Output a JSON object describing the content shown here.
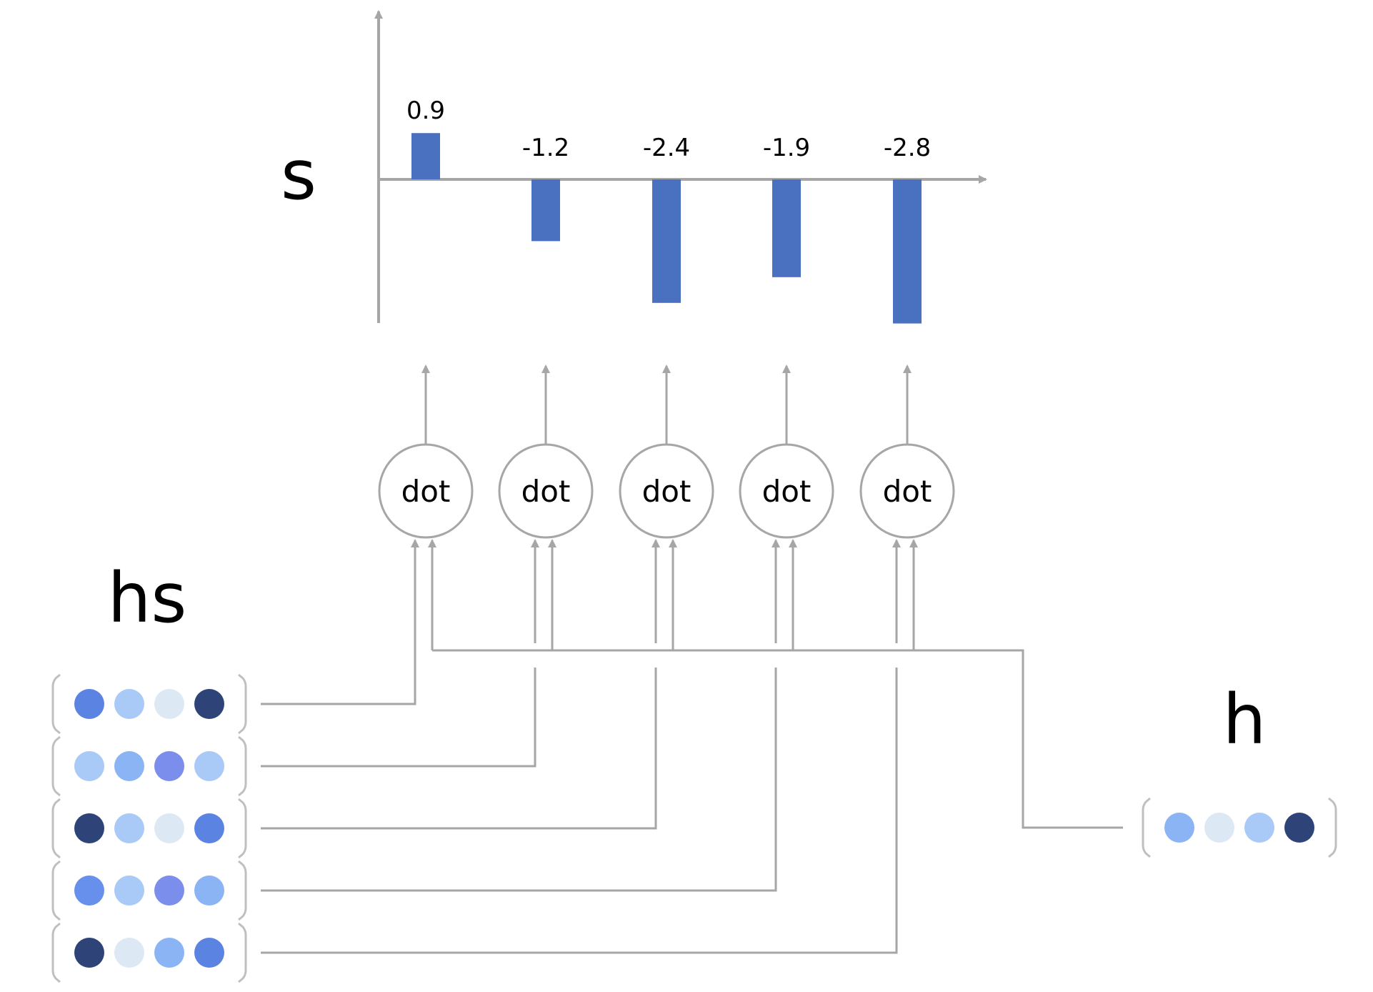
{
  "labels": {
    "scores": "s",
    "encoder_states": "hs",
    "decoder_state": "h",
    "dot": "dot"
  },
  "colors": {
    "line": "#A6A6A6",
    "bar": "#4A70C0",
    "circle_fill": "#FFFFFF",
    "bracket": "#BFBFBF"
  },
  "chart_data": {
    "type": "bar",
    "categories": [
      "",
      "",
      "",
      "",
      ""
    ],
    "values": [
      0.9,
      -1.2,
      -2.4,
      -1.9,
      -2.8
    ],
    "value_labels": [
      "0.9",
      "-1.2",
      "-2.4",
      "-1.9",
      "-2.8"
    ]
  },
  "hs_rows": [
    [
      "#5B84E2",
      "#A9C9F7",
      "#DDE8F5",
      "#2E4478"
    ],
    [
      "#A9C9F7",
      "#8BB4F5",
      "#7B8EEC",
      "#A9C9F7"
    ],
    [
      "#2E4478",
      "#A9C9F7",
      "#DDE8F5",
      "#5B84E2"
    ],
    [
      "#6690EC",
      "#A9C9F7",
      "#7B8EEC",
      "#8BB4F5"
    ],
    [
      "#2E4478",
      "#DDE8F5",
      "#8BB4F5",
      "#5B84E2"
    ]
  ],
  "h_vector": [
    "#8BB4F5",
    "#DDE8F5",
    "#A9C9F7",
    "#2E4478"
  ]
}
